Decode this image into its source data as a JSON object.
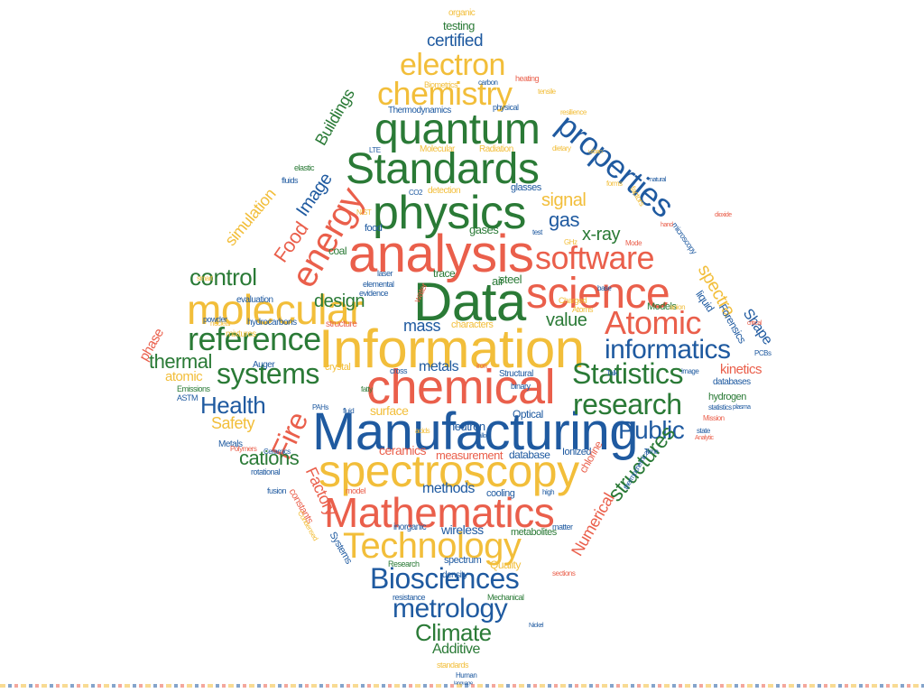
{
  "colors": {
    "blue": "#1f5aa0",
    "green": "#2a7a36",
    "orange": "#ea5f4b",
    "yellow": "#f2be3a"
  },
  "words": {
    "information": "Information",
    "data": "Data",
    "analysis": "analysis",
    "manufacturing": "Manufacturing",
    "chemical": "chemical",
    "standards": "Standards",
    "physics": "physics",
    "quantum": "quantum",
    "spectroscopy": "spectroscopy",
    "mathematics": "Mathematics",
    "molecular": "molecular",
    "science": "science",
    "technology": "Technology",
    "software": "software",
    "chemistry": "chemistry",
    "electron": "electron",
    "properties": "properties",
    "energy": "energy",
    "reference": "reference",
    "atomic_cap": "Atomic",
    "informatics": "informatics",
    "statistics": "Statistics",
    "research": "research",
    "biosciences": "Biosciences",
    "metrology": "metrology",
    "systems": "systems",
    "climate": "Climate",
    "public": "Public",
    "health": "Health",
    "fire": "Fire",
    "control": "control",
    "structures": "structures",
    "food": "Food",
    "image": "Image",
    "spectra": "spectra",
    "gas": "gas",
    "signal": "signal",
    "certified": "certified",
    "xray": "x-ray",
    "thermal": "thermal",
    "cations": "cations",
    "design": "design",
    "mass": "mass",
    "value": "value",
    "additive": "Additive",
    "numerical": "Numerical",
    "safety": "Safety",
    "factory": "Factory",
    "buildings": "Buildings",
    "simulation": "simulation",
    "shape": "Shape",
    "methods": "methods",
    "metals": "metals",
    "surface": "surface",
    "ceramics": "ceramics",
    "kinetics": "kinetics",
    "atomic": "atomic",
    "phase": "phase",
    "neutron": "neutron",
    "forensics": "Forensics",
    "wireless": "wireless",
    "quality": "Quality",
    "testing": "testing",
    "organic": "organic",
    "spectrum": "spectrum",
    "database": "database",
    "measurement": "measurement",
    "optical": "Optical",
    "ionized": "Ionized",
    "chlorine": "chlorine",
    "steel": "steel",
    "air": "air",
    "trace": "trace",
    "gases": "gases",
    "coal": "coal",
    "liquid": "liquid",
    "models": "Models",
    "hydrogen": "hydrogen",
    "databases": "databases",
    "cooling": "cooling",
    "metabolites": "metabolites",
    "density": "density",
    "inorganic": "inorganic",
    "constants": "constants",
    "mixtures": "mixtures",
    "crystal": "crystal",
    "structure": "structure",
    "evaluation": "evaluation",
    "hydrocarbons": "hydrocarbons",
    "glasses": "glasses",
    "detection": "detection",
    "thermodynamics": "Thermodynamics",
    "auger": "Auger",
    "emissions": "Emissions",
    "astm": "ASTM",
    "metals_cap": "Metals",
    "fusion": "fusion",
    "powder": "powder",
    "structural": "Structural",
    "food_lc": "food",
    "standards_lc": "standards",
    "human": "Human",
    "mechanical": "Mechanical",
    "resistance": "resistance",
    "research_cap": "Research",
    "matter": "matter",
    "sections": "sections",
    "fluids": "fluids",
    "elastic": "elastic",
    "water": "water",
    "physical": "physical",
    "radiation": "Radiation",
    "molecular_cap": "Molecular",
    "biometrics": "Biometrics",
    "heating": "heating",
    "tensile": "tensile",
    "carbon": "carbon",
    "microscopy": "microscopy",
    "rotational": "rotational",
    "model": "model",
    "fatty": "fatty",
    "cross": "cross",
    "binary": "binary",
    "talk": "Talk",
    "image_lc": "image",
    "time": "Time",
    "high": "high",
    "nuclear": "nuclear",
    "polymers": "Polymers",
    "condensed": "Condensed",
    "systems_cap": "Systems",
    "ceramics_cap": "Ceramics",
    "pahs": "PAHs",
    "acids": "acids",
    "iron": "iron",
    "characters": "characters",
    "laser": "laser",
    "elemental": "elemental",
    "evidence": "evidence",
    "smart": "smart",
    "charged": "Charged",
    "atoms": "Atoms",
    "base": "base",
    "anion": "anion",
    "dietary": "dietary",
    "forms": "forms",
    "factors": "factors",
    "ghz": "GHz",
    "statistics_lc": "statistics",
    "pcbs": "PCBs",
    "plasma": "plasma",
    "state": "state",
    "mission": "Mission",
    "thermochemical": "thermochemical",
    "lte": "LTE",
    "co2": "CO2",
    "test": "test",
    "nist": "NIST",
    "alloy": "alloy",
    "fluid": "fluid",
    "resilience": "resilience",
    "critical": "critical",
    "urban": "urban",
    "natural": "natural",
    "hand": "hand",
    "mode": "Mode",
    "nickel": "Nickel",
    "language": "language",
    "analytic": "Analytic",
    "dioxide": "dioxide"
  }
}
